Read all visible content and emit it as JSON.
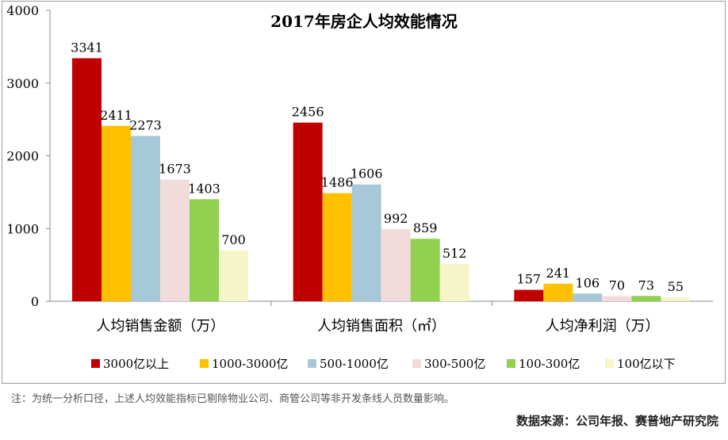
{
  "chart_data": {
    "type": "bar",
    "title": "2017年房企人均效能情况",
    "categories": [
      "人均销售金额（万）",
      "人均销售面积（㎡）",
      "人均净利润（万）"
    ],
    "series": [
      {
        "name": "3000亿以上",
        "color": "#c00000",
        "values": [
          3341,
          2456,
          157
        ]
      },
      {
        "name": "1000-3000亿",
        "color": "#ffc000",
        "values": [
          2411,
          1486,
          241
        ]
      },
      {
        "name": "500-1000亿",
        "color": "#a6c8d8",
        "values": [
          2273,
          1606,
          106
        ]
      },
      {
        "name": "300-500亿",
        "color": "#f2dcdb",
        "values": [
          1673,
          992,
          70
        ]
      },
      {
        "name": "100-300亿",
        "color": "#92d050",
        "values": [
          1403,
          859,
          73
        ]
      },
      {
        "name": "100亿以下",
        "color": "#f5f5c8",
        "values": [
          700,
          512,
          55
        ]
      }
    ],
    "ylim": [
      0,
      4000
    ],
    "yticks": [
      "0",
      "1000",
      "2000",
      "3000",
      "4000"
    ],
    "grid": false,
    "legend_position": "bottom"
  },
  "footnote": "注：为统一分析口径，上述人均效能指标已剔除物业公司、商管公司等非开发条线人员数量影响。",
  "source": "数据来源：公司年报、赛普地产研究院"
}
